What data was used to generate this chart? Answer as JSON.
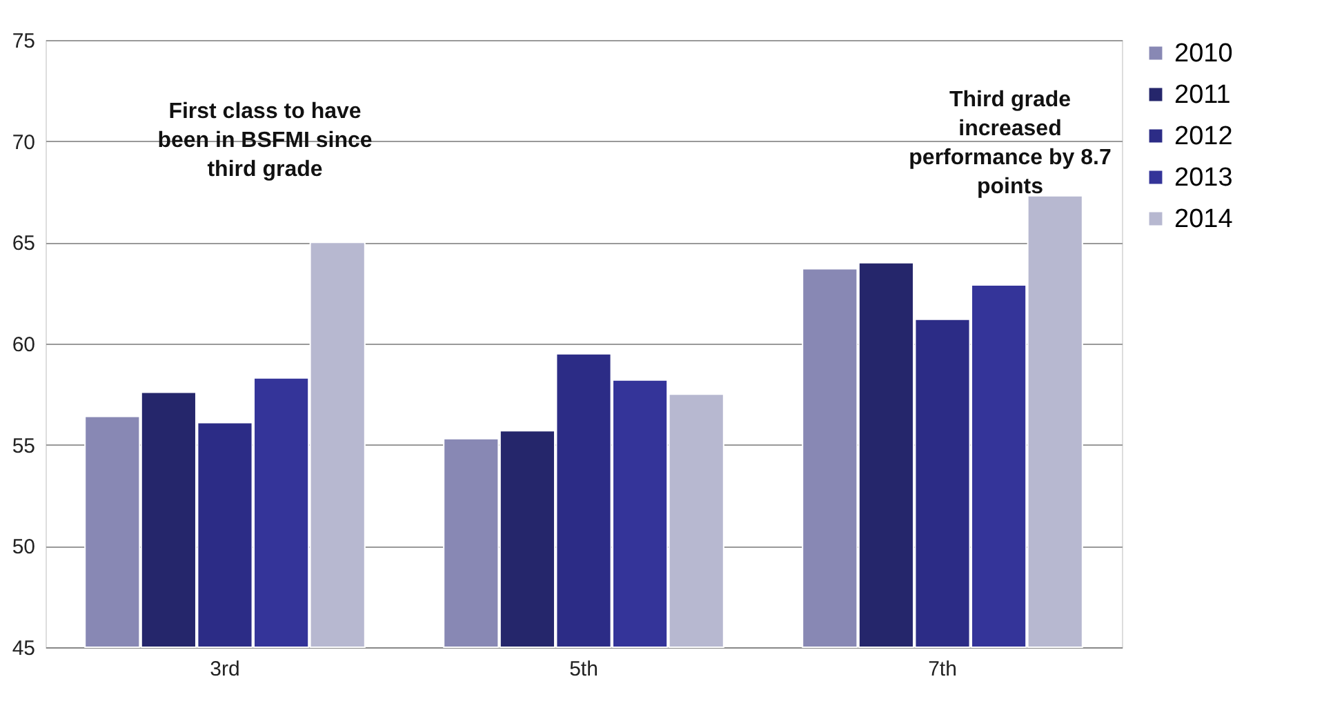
{
  "chart_data": {
    "type": "bar",
    "categories": [
      "3rd",
      "5th",
      "7th"
    ],
    "series": [
      {
        "name": "2010",
        "color": "#8888b4",
        "values": [
          56.4,
          55.3,
          63.7
        ]
      },
      {
        "name": "2011",
        "color": "#25266b",
        "values": [
          57.6,
          55.7,
          64.0
        ]
      },
      {
        "name": "2012",
        "color": "#2c2c86",
        "values": [
          56.1,
          59.5,
          61.2
        ]
      },
      {
        "name": "2013",
        "color": "#343499",
        "values": [
          58.3,
          58.2,
          62.9
        ]
      },
      {
        "name": "2014",
        "color": "#b7b8d0",
        "values": [
          65.0,
          57.5,
          67.3
        ]
      }
    ],
    "ylim": [
      45,
      75
    ],
    "yticks": [
      45,
      50,
      55,
      60,
      65,
      70,
      75
    ],
    "grid": "y",
    "legend": "right",
    "annotations": [
      "First class to have been in BSFMI since third grade",
      "Third grade increased performance by 8.7 points"
    ]
  }
}
